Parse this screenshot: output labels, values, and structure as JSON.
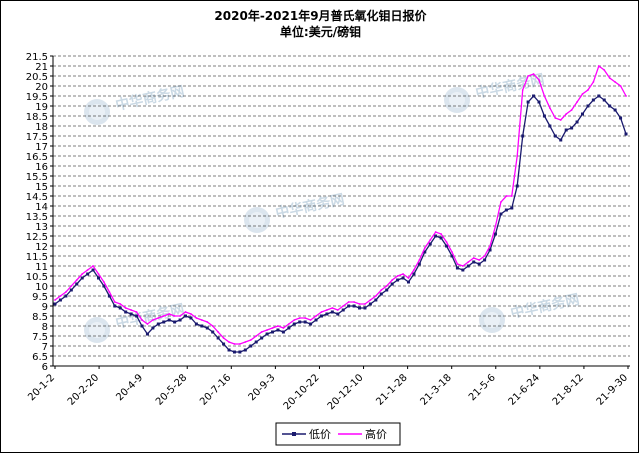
{
  "chart_data": {
    "type": "line",
    "title": "2020年-2021年9月普氏氧化钼日报价",
    "subtitle": "单位:美元/磅钼",
    "xlabel": "",
    "ylabel": "",
    "ylim": [
      6,
      21.5
    ],
    "y_ticks": [
      "6",
      "6.5",
      "7",
      "7.5",
      "8",
      "8.5",
      "9",
      "9.5",
      "10",
      "10.5",
      "11",
      "11.5",
      "12",
      "12.5",
      "13",
      "13.5",
      "14",
      "14.5",
      "15",
      "15.5",
      "16",
      "16.5",
      "17",
      "17.5",
      "18",
      "18.5",
      "19",
      "19.5",
      "20",
      "20.5",
      "21",
      "21.5"
    ],
    "x_ticks": [
      "20-1-2",
      "20-2-20",
      "20-4-9",
      "20-5-28",
      "20-7-16",
      "20-9-3",
      "20-10-22",
      "20-12-10",
      "21-1-28",
      "21-3-18",
      "21-5-6",
      "21-6-24",
      "21-8-12",
      "21-9-30"
    ],
    "grid": true,
    "legend_position": "bottom",
    "watermark_text": "中华商务网",
    "series": [
      {
        "name": "低价",
        "color": "#1a1a6e",
        "marker": "square",
        "values": [
          9.1,
          9.3,
          9.5,
          9.8,
          10.1,
          10.4,
          10.6,
          10.8,
          10.4,
          10.0,
          9.5,
          9.0,
          8.9,
          8.7,
          8.6,
          8.5,
          8.0,
          7.6,
          7.9,
          8.1,
          8.2,
          8.3,
          8.2,
          8.3,
          8.5,
          8.4,
          8.1,
          8.0,
          7.9,
          7.7,
          7.4,
          7.1,
          6.8,
          6.7,
          6.7,
          6.8,
          7.0,
          7.2,
          7.4,
          7.6,
          7.7,
          7.8,
          7.7,
          7.9,
          8.1,
          8.2,
          8.2,
          8.1,
          8.3,
          8.5,
          8.6,
          8.7,
          8.6,
          8.8,
          9.0,
          9.0,
          8.9,
          8.9,
          9.1,
          9.3,
          9.6,
          9.8,
          10.1,
          10.3,
          10.4,
          10.2,
          10.6,
          11.1,
          11.7,
          12.1,
          12.5,
          12.4,
          12.0,
          11.5,
          10.9,
          10.8,
          11.0,
          11.2,
          11.1,
          11.3,
          11.8,
          12.6,
          13.6,
          13.8,
          13.9,
          15.0,
          17.5,
          19.2,
          19.5,
          19.2,
          18.5,
          18.0,
          17.5,
          17.3,
          17.8,
          17.9,
          18.2,
          18.6,
          19.0,
          19.3,
          19.5,
          19.3,
          19.0,
          18.8,
          18.4,
          17.6
        ]
      },
      {
        "name": "高价",
        "color": "#ff00ff",
        "marker": "none",
        "values": [
          9.3,
          9.5,
          9.7,
          10.0,
          10.3,
          10.6,
          10.8,
          11.0,
          10.6,
          10.2,
          9.7,
          9.2,
          9.1,
          8.9,
          8.8,
          8.7,
          8.3,
          8.1,
          8.3,
          8.4,
          8.5,
          8.6,
          8.5,
          8.5,
          8.7,
          8.6,
          8.4,
          8.3,
          8.2,
          8.0,
          7.7,
          7.4,
          7.2,
          7.1,
          7.1,
          7.2,
          7.3,
          7.5,
          7.7,
          7.8,
          7.9,
          8.0,
          7.9,
          8.1,
          8.3,
          8.4,
          8.4,
          8.3,
          8.5,
          8.7,
          8.8,
          8.9,
          8.8,
          9.0,
          9.2,
          9.2,
          9.1,
          9.1,
          9.3,
          9.5,
          9.8,
          10.0,
          10.3,
          10.5,
          10.6,
          10.4,
          10.8,
          11.3,
          11.9,
          12.3,
          12.7,
          12.6,
          12.2,
          11.7,
          11.1,
          11.0,
          11.2,
          11.4,
          11.3,
          11.5,
          12.0,
          13.0,
          14.2,
          14.5,
          14.5,
          16.5,
          19.8,
          20.5,
          20.6,
          20.3,
          19.5,
          18.9,
          18.4,
          18.3,
          18.6,
          18.8,
          19.2,
          19.6,
          19.8,
          20.2,
          21.0,
          20.8,
          20.4,
          20.2,
          20.0,
          19.5
        ]
      }
    ]
  }
}
